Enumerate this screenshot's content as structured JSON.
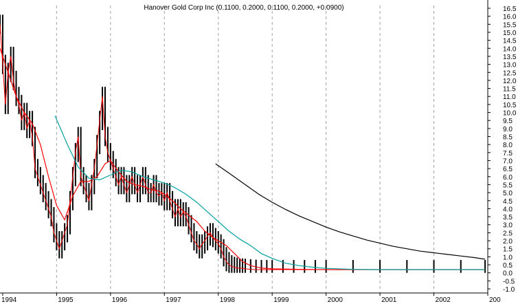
{
  "chart_data": {
    "type": "line",
    "title": "Hanover Gold Corp Inc (0.1100, 0.2000, 0.1100, 0.2000, +0.0900)",
    "xlabel": "",
    "ylabel": "",
    "x_tick_labels": [
      "1994",
      "1995",
      "1996",
      "1997",
      "1998",
      "1999",
      "2000",
      "2001",
      "2002",
      "200"
    ],
    "y_tick_labels": [
      "16.5",
      "16.0",
      "15.5",
      "15.0",
      "14.5",
      "14.0",
      "13.5",
      "13.0",
      "12.5",
      "12.0",
      "11.5",
      "11.0",
      "10.5",
      "10.0",
      "9.5",
      "9.0",
      "8.5",
      "8.0",
      "7.5",
      "7.0",
      "6.5",
      "6.0",
      "5.5",
      "5.0",
      "4.5",
      "4.0",
      "3.5",
      "3.0",
      "2.5",
      "2.0",
      "1.5",
      "1.0",
      "0.5",
      "0.0",
      "-0.5",
      "-1.0"
    ],
    "x_range": [
      1993.95,
      2003.0
    ],
    "ylim": [
      -1.0,
      16.5
    ],
    "grid": "vertical dashed at year boundaries",
    "series": [
      {
        "color": "#000000",
        "style": "price bars",
        "x": [
          1993.95,
          1994.0,
          1994.05,
          1994.1,
          1994.15,
          1994.2,
          1994.25,
          1994.3,
          1994.35,
          1994.4,
          1994.45,
          1994.5,
          1994.55,
          1994.6,
          1994.65,
          1994.7,
          1994.75,
          1994.8,
          1994.85,
          1994.9,
          1994.95,
          1995.0,
          1995.05,
          1995.1,
          1995.15,
          1995.2,
          1995.25,
          1995.3,
          1995.35,
          1995.4,
          1995.45,
          1995.5,
          1995.55,
          1995.6,
          1995.65,
          1995.7,
          1995.75,
          1995.8,
          1995.85,
          1995.9,
          1995.95,
          1996.0,
          1996.05,
          1996.1,
          1996.15,
          1996.2,
          1996.25,
          1996.3,
          1996.35,
          1996.4,
          1996.45,
          1996.5,
          1996.55,
          1996.6,
          1996.65,
          1996.7,
          1996.75,
          1996.8,
          1996.85,
          1996.9,
          1996.95,
          1997.0,
          1997.05,
          1997.1,
          1997.15,
          1997.2,
          1997.25,
          1997.3,
          1997.35,
          1997.4,
          1997.45,
          1997.5,
          1997.55,
          1997.6,
          1997.65,
          1997.7,
          1997.75,
          1997.8,
          1997.85,
          1997.9,
          1997.95,
          1998.0,
          1998.05,
          1998.1,
          1998.15,
          1998.2,
          1998.25,
          1998.3,
          1998.35,
          1998.4,
          1998.45,
          1998.5,
          1998.6,
          1998.7,
          1998.8,
          1998.9,
          1999.0,
          1999.2,
          1999.4,
          1999.6,
          1999.8,
          2000.0,
          2000.5,
          2001.0,
          2001.5,
          2002.0,
          2002.5,
          2002.95
        ],
        "values": [
          15.5,
          13.0,
          10.5,
          12.5,
          13.5,
          12.0,
          11.0,
          10.5,
          9.5,
          10.0,
          9.0,
          9.5,
          8.5,
          6.5,
          6.0,
          5.5,
          5.0,
          4.5,
          4.0,
          3.5,
          2.5,
          2.0,
          1.5,
          2.0,
          2.5,
          3.0,
          4.5,
          6.0,
          7.5,
          8.5,
          6.0,
          5.5,
          5.0,
          4.5,
          5.5,
          6.5,
          8.0,
          9.5,
          11.0,
          8.5,
          7.5,
          7.0,
          6.5,
          6.0,
          5.5,
          6.0,
          5.5,
          5.0,
          5.5,
          6.0,
          5.5,
          5.0,
          5.5,
          6.0,
          5.5,
          5.0,
          5.0,
          5.5,
          5.0,
          4.8,
          5.0,
          4.5,
          5.0,
          4.5,
          4.0,
          3.5,
          4.0,
          3.5,
          3.8,
          3.5,
          3.0,
          2.5,
          2.0,
          1.8,
          1.5,
          1.8,
          2.0,
          2.3,
          2.5,
          2.2,
          2.0,
          1.8,
          1.5,
          1.0,
          0.7,
          0.5,
          0.4,
          0.35,
          0.3,
          0.3,
          0.28,
          0.25,
          0.22,
          0.2,
          0.2,
          0.2,
          0.2,
          0.2,
          0.2,
          0.2,
          0.2,
          0.2,
          0.2,
          0.2,
          0.2,
          0.2,
          0.2,
          0.2
        ]
      },
      {
        "color": "#ff0000",
        "style": "moving average (short)",
        "x": [
          1993.95,
          1994.1,
          1994.25,
          1994.4,
          1994.55,
          1994.7,
          1994.85,
          1995.0,
          1995.15,
          1995.3,
          1995.45,
          1995.6,
          1995.75,
          1995.9,
          1996.0,
          1996.15,
          1996.3,
          1996.45,
          1996.6,
          1996.75,
          1996.9,
          1997.0,
          1997.15,
          1997.3,
          1997.45,
          1997.6,
          1997.75,
          1997.9,
          1998.0,
          1998.15,
          1998.3,
          1998.45,
          1998.6,
          1998.8,
          1999.0,
          1999.5,
          2000.0,
          2000.5,
          2001.0,
          2001.5,
          2002.0,
          2002.5,
          2002.95
        ],
        "values": [
          14.0,
          12.5,
          11.0,
          10.0,
          9.3,
          8.0,
          6.0,
          4.2,
          3.3,
          4.8,
          5.7,
          5.7,
          6.0,
          6.8,
          7.0,
          6.3,
          5.7,
          5.5,
          5.4,
          5.2,
          5.1,
          4.9,
          4.5,
          4.0,
          3.6,
          3.2,
          2.6,
          2.2,
          2.0,
          1.7,
          1.2,
          0.7,
          0.45,
          0.3,
          0.25,
          0.22,
          0.2,
          0.2,
          0.2,
          0.2,
          0.2,
          0.2,
          0.2
        ]
      },
      {
        "color": "#00a0a0",
        "style": "moving average (medium)",
        "x": [
          1994.97,
          1995.2,
          1995.4,
          1995.6,
          1995.8,
          1996.0,
          1996.2,
          1996.4,
          1996.6,
          1996.8,
          1997.0,
          1997.2,
          1997.4,
          1997.6,
          1997.8,
          1998.0,
          1998.2,
          1998.4,
          1998.6,
          1998.8,
          1999.0,
          1999.25,
          1999.5,
          1999.75,
          2000.0,
          2000.5,
          2001.0,
          2001.5,
          2002.0,
          2002.5,
          2002.95
        ],
        "values": [
          9.8,
          8.0,
          6.6,
          5.9,
          5.8,
          6.1,
          6.4,
          6.3,
          6.0,
          5.8,
          5.6,
          5.3,
          4.9,
          4.4,
          3.8,
          3.2,
          2.6,
          2.1,
          1.7,
          1.2,
          0.9,
          0.6,
          0.45,
          0.35,
          0.28,
          0.22,
          0.2,
          0.2,
          0.2,
          0.2,
          0.2
        ]
      },
      {
        "color": "#000000",
        "style": "moving average (long)",
        "x": [
          1997.95,
          1998.25,
          1998.5,
          1998.75,
          1999.0,
          1999.25,
          1999.5,
          1999.75,
          2000.0,
          2000.25,
          2000.5,
          2000.75,
          2001.0,
          2001.25,
          2001.5,
          2001.75,
          2002.0,
          2002.25,
          2002.5,
          2002.75,
          2002.95
        ],
        "values": [
          6.8,
          6.1,
          5.5,
          4.9,
          4.4,
          3.95,
          3.55,
          3.2,
          2.85,
          2.55,
          2.3,
          2.05,
          1.85,
          1.65,
          1.5,
          1.35,
          1.25,
          1.15,
          1.05,
          0.95,
          0.85
        ]
      }
    ]
  }
}
